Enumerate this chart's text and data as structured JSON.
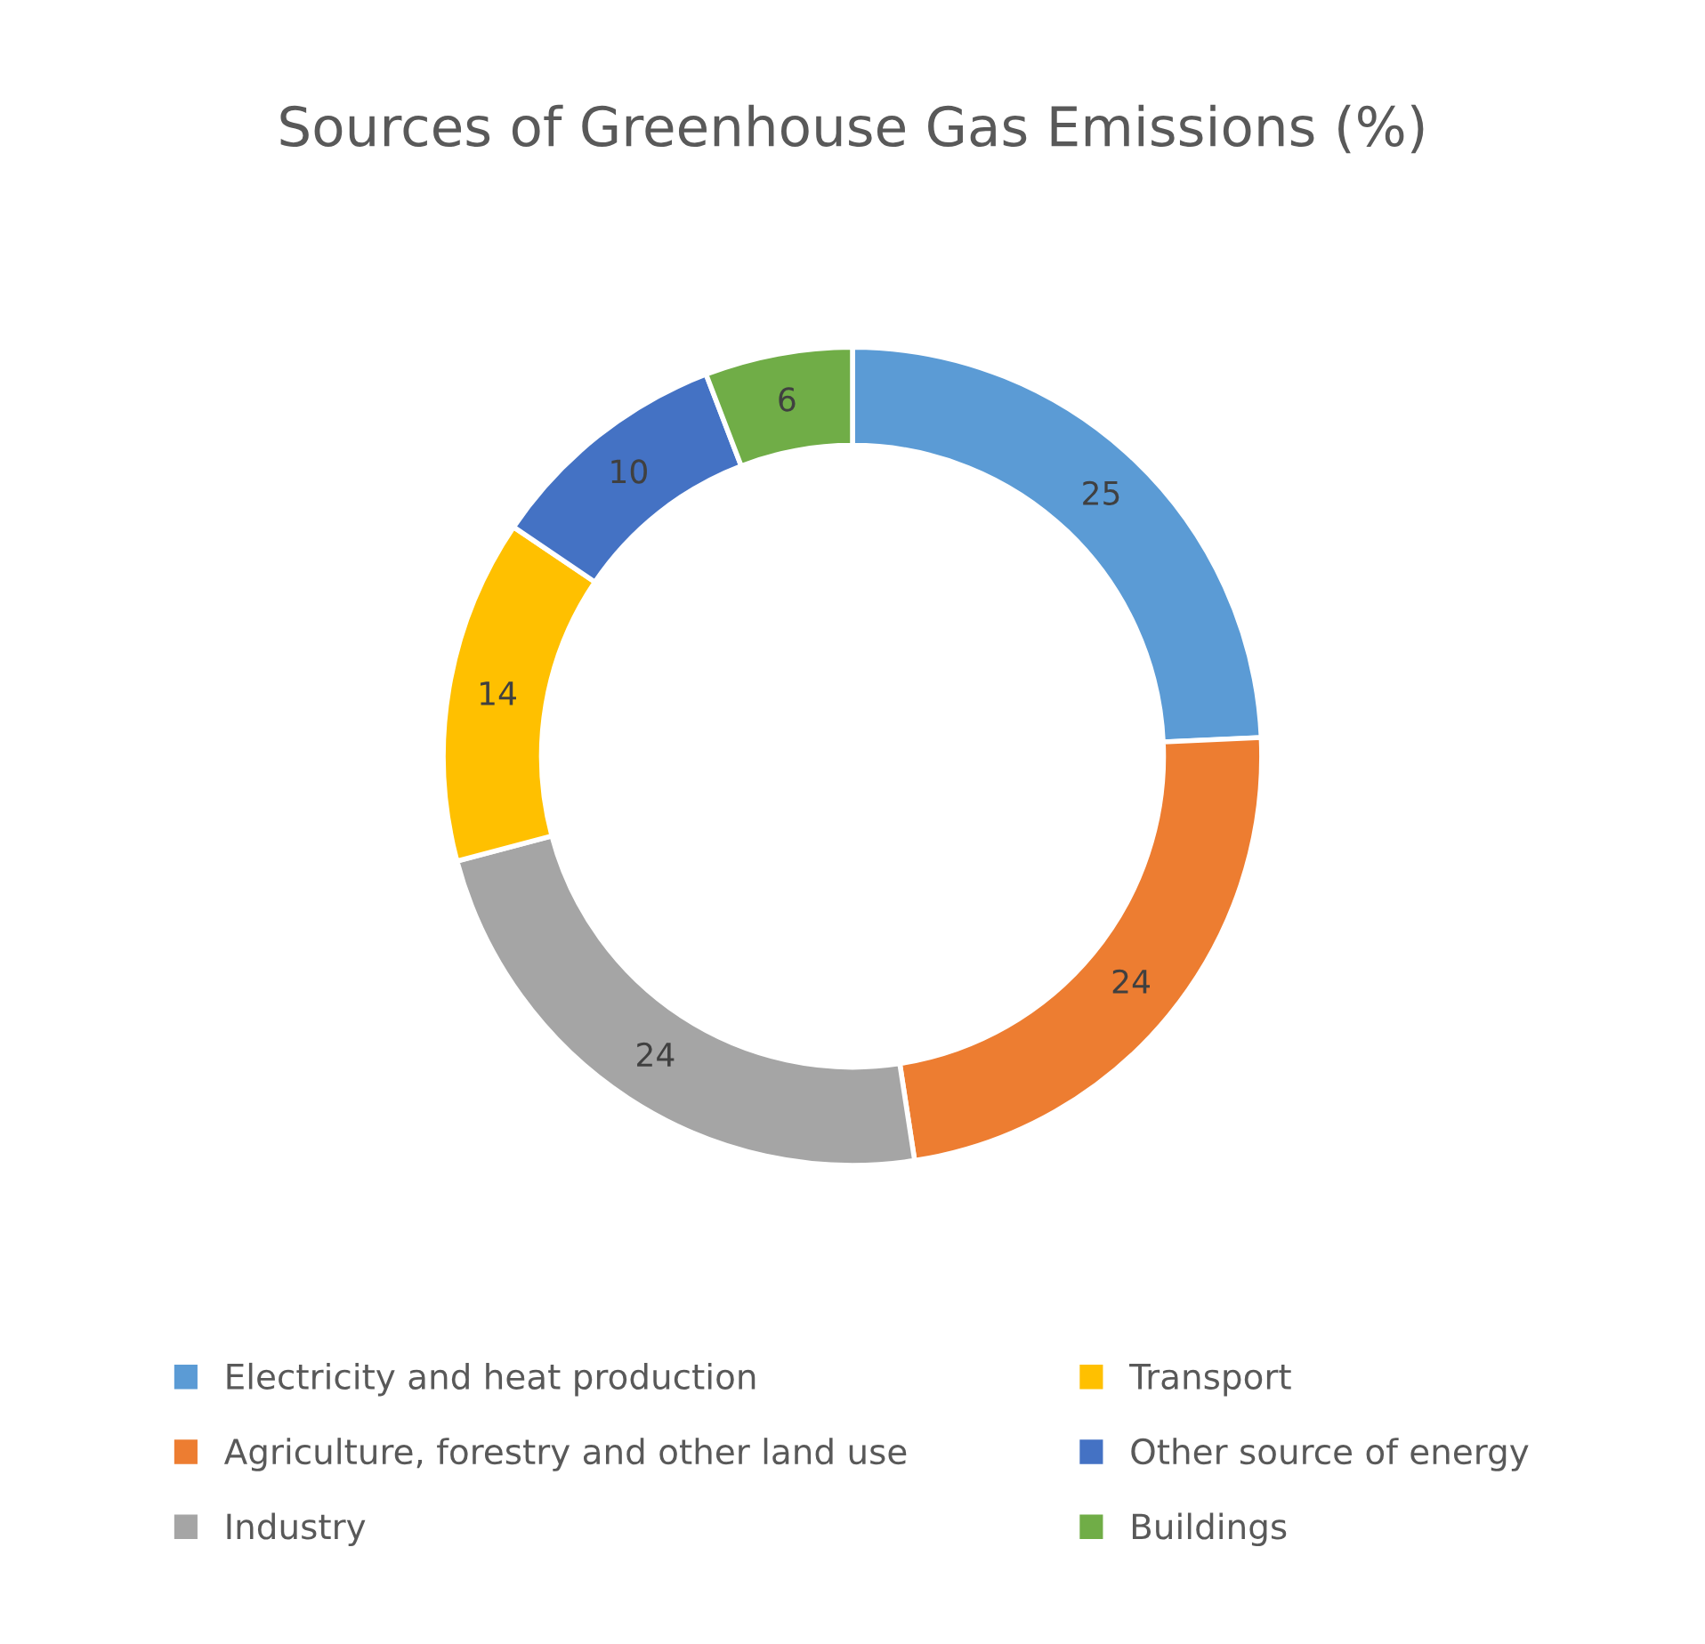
{
  "chart_data": {
    "type": "donut",
    "title": "Sources of Greenhouse Gas Emissions (%)",
    "categories": [
      "Electricity and heat production",
      "Agriculture, forestry and other land use",
      "Industry",
      "Transport",
      "Other source of energy",
      "Buildings"
    ],
    "values": [
      25,
      24,
      24,
      14,
      10,
      6
    ],
    "colors": [
      "#5b9bd5",
      "#ed7d31",
      "#a5a5a5",
      "#ffc000",
      "#4472c4",
      "#70ad47"
    ],
    "data_labels": true,
    "legend": "bottom"
  }
}
